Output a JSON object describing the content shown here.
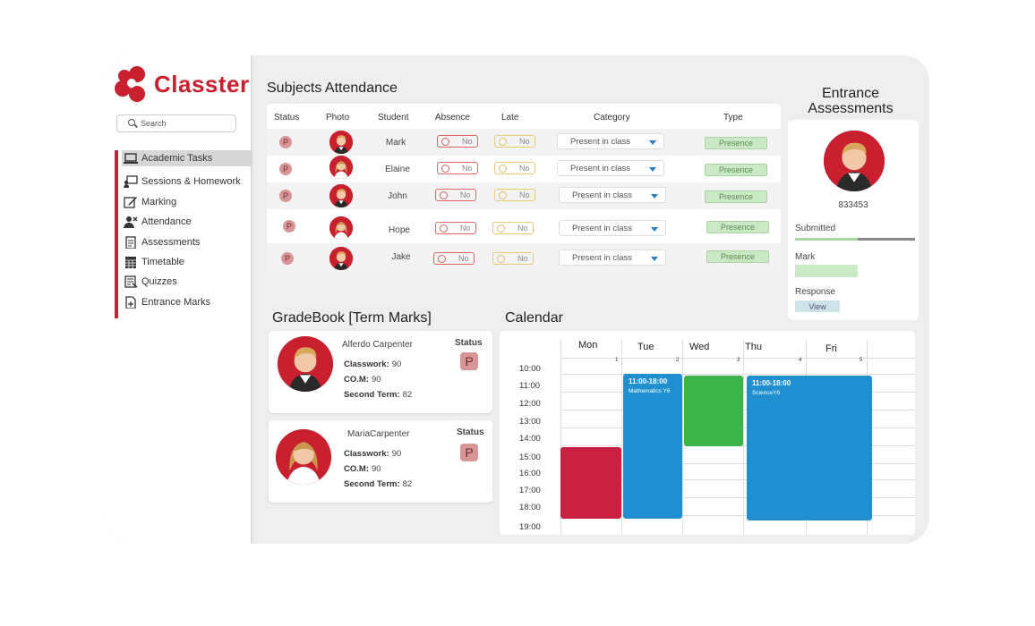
{
  "brand": {
    "name": "Classter",
    "accent": "#c8202f"
  },
  "search": {
    "placeholder": "Search",
    "icon": "search-icon"
  },
  "sidebar": {
    "items": [
      {
        "label": "Academic Tasks",
        "icon": "laptop-icon",
        "active": true
      },
      {
        "label": "Sessions & Homework",
        "icon": "teacher-board-icon"
      },
      {
        "label": "Marking",
        "icon": "edit-icon"
      },
      {
        "label": "Attendance",
        "icon": "user-remove-icon"
      },
      {
        "label": "Assessments",
        "icon": "clipboard-icon"
      },
      {
        "label": "Timetable",
        "icon": "calendar-grid-icon"
      },
      {
        "label": "Quizzes",
        "icon": "quiz-icon"
      },
      {
        "label": "Entrance Marks",
        "icon": "document-plus-icon"
      }
    ]
  },
  "attendance": {
    "title": "Subjects Attendance",
    "columns": [
      "Status",
      "Photo",
      "Student",
      "Absence",
      "Late",
      "Category",
      "Type"
    ],
    "rows": [
      {
        "status": "P",
        "student": "Mark",
        "absence": "No",
        "late": "No",
        "category": "Present in class",
        "type": "Presence",
        "photo": "boy"
      },
      {
        "status": "P",
        "student": "Elaine",
        "absence": "No",
        "late": "No",
        "category": "Present in class",
        "type": "Presence",
        "photo": "girl"
      },
      {
        "status": "P",
        "student": "John",
        "absence": "No",
        "late": "No",
        "category": "Present in class",
        "type": "Presence",
        "photo": "boy"
      },
      {
        "status": "P",
        "student": "Hope",
        "absence": "No",
        "late": "No",
        "category": "Present in class",
        "type": "Presence",
        "photo": "girl"
      },
      {
        "status": "P",
        "student": "Jake",
        "absence": "No",
        "late": "No",
        "category": "Present in class",
        "type": "Presence",
        "photo": "boy"
      }
    ]
  },
  "entrance": {
    "title_line1": "Entrance",
    "title_line2": "Assessments",
    "id": "833453",
    "submitted_label": "Submitted",
    "submitted_progress": 0.52,
    "mark_label": "Mark",
    "response_label": "Response",
    "view_label": "View"
  },
  "gradebook": {
    "title": "GradeBook [Term Marks]",
    "cards": [
      {
        "name": "Alferdo Carpenter",
        "classwork_label": "Classwork:",
        "classwork": "90",
        "com_label": "CO.M:",
        "com": "90",
        "second_label": "Second Term:",
        "second": "82",
        "status_label": "Status",
        "status": "P",
        "photo": "boy"
      },
      {
        "name": "MariaCarpenter",
        "classwork_label": "Classwork:",
        "classwork": "90",
        "com_label": "CO.M:",
        "com": "90",
        "second_label": "Second Term:",
        "second": "82",
        "status_label": "Status",
        "status": "P",
        "photo": "girl"
      }
    ]
  },
  "calendar": {
    "title": "Calendar",
    "days": [
      {
        "name": "Mon",
        "num": "1"
      },
      {
        "name": "Tue",
        "num": "2"
      },
      {
        "name": "Wed",
        "num": "3"
      },
      {
        "name": "Thu",
        "num": "4"
      },
      {
        "name": "Fri",
        "num": "5"
      }
    ],
    "hours": [
      "10:00",
      "11:00",
      "12:00",
      "13:00",
      "14:00",
      "15:00",
      "16:00",
      "17:00",
      "18:00",
      "19:00"
    ],
    "events": [
      {
        "title": "11:00-18:00",
        "subject": "Mathematics Y6",
        "color": "#1f8fd0"
      },
      {
        "title": "11:00-18:00",
        "subject": "ScienceY6",
        "color": "#1f8fd0"
      },
      {
        "title": "",
        "subject": "",
        "color": "#c8203e"
      },
      {
        "title": "",
        "subject": "",
        "color": "#3bb54a"
      }
    ]
  }
}
